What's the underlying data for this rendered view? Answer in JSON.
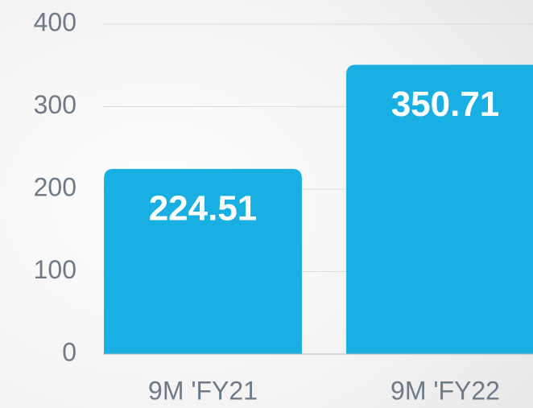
{
  "chart_data": {
    "type": "bar",
    "categories": [
      "9M 'FY21",
      "9M 'FY22"
    ],
    "values": [
      224.51,
      350.71
    ],
    "color": "#1aafe2",
    "ylim": [
      0,
      400
    ],
    "yticks": [
      0,
      100,
      200,
      300,
      400
    ],
    "grid": true
  }
}
